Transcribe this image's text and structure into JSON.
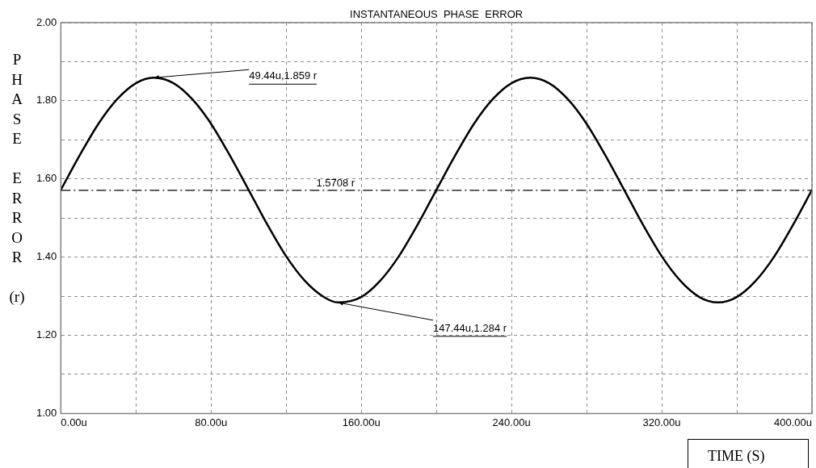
{
  "chart_data": {
    "type": "line",
    "title": "INSTANTANEOUS  PHASE  ERROR",
    "xlabel": "TIME  (S)",
    "ylabel": "PHASE ERROR (r)",
    "x": [
      0,
      10,
      20,
      30,
      40,
      49.44,
      60,
      70,
      80,
      90,
      100,
      110,
      120,
      130,
      140,
      147.44,
      160,
      170,
      180,
      190,
      200,
      210,
      220,
      230,
      240,
      250,
      260,
      270,
      280,
      290,
      300,
      310,
      320,
      330,
      340,
      350,
      360,
      370,
      380,
      390,
      400
    ],
    "series": [
      {
        "color": "#000000",
        "values": [
          1.572,
          1.66,
          1.741,
          1.804,
          1.845,
          1.859,
          1.845,
          1.804,
          1.741,
          1.66,
          1.572,
          1.483,
          1.402,
          1.339,
          1.298,
          1.284,
          1.298,
          1.339,
          1.402,
          1.483,
          1.572,
          1.66,
          1.741,
          1.804,
          1.845,
          1.859,
          1.845,
          1.804,
          1.741,
          1.66,
          1.572,
          1.483,
          1.402,
          1.339,
          1.298,
          1.284,
          1.298,
          1.339,
          1.402,
          1.483,
          1.572
        ]
      }
    ],
    "xlim": [
      0,
      400
    ],
    "xticks": [
      {
        "value": 0,
        "label": "0.00u"
      },
      {
        "value": 40,
        "label": null
      },
      {
        "value": 80,
        "label": "80.00u"
      },
      {
        "value": 120,
        "label": null
      },
      {
        "value": 160,
        "label": "160.00u"
      },
      {
        "value": 200,
        "label": null
      },
      {
        "value": 240,
        "label": "240.00u"
      },
      {
        "value": 280,
        "label": null
      },
      {
        "value": 320,
        "label": "320.00u"
      },
      {
        "value": 360,
        "label": null
      },
      {
        "value": 400,
        "label": "400.00u"
      }
    ],
    "ylim": [
      1,
      2
    ],
    "yticks": [
      {
        "value": 1,
        "label": "1.00"
      },
      {
        "value": 1.1,
        "label": null
      },
      {
        "value": 1.2,
        "label": "1.20"
      },
      {
        "value": 1.3,
        "label": null
      },
      {
        "value": 1.4,
        "label": "1.40"
      },
      {
        "value": 1.5,
        "label": null
      },
      {
        "value": 1.6,
        "label": "1.60"
      },
      {
        "value": 1.7,
        "label": null
      },
      {
        "value": 1.8,
        "label": "1.80"
      },
      {
        "value": 1.9,
        "label": null
      },
      {
        "value": 2,
        "label": "2.00"
      }
    ],
    "ref_lines": [
      {
        "axis": "y",
        "value": 1.5708,
        "label": "1.5708 r",
        "color": "#000000",
        "line_style": "dashdot"
      }
    ],
    "annotations": [
      {
        "text": "49.44u,1.859 r",
        "x": 49.44,
        "y": 1.859
      },
      {
        "text": "147.44u,1.284 r",
        "x": 147.44,
        "y": 1.284
      }
    ],
    "grid": true,
    "legend": false,
    "marker": "none",
    "line_style": "solid"
  }
}
